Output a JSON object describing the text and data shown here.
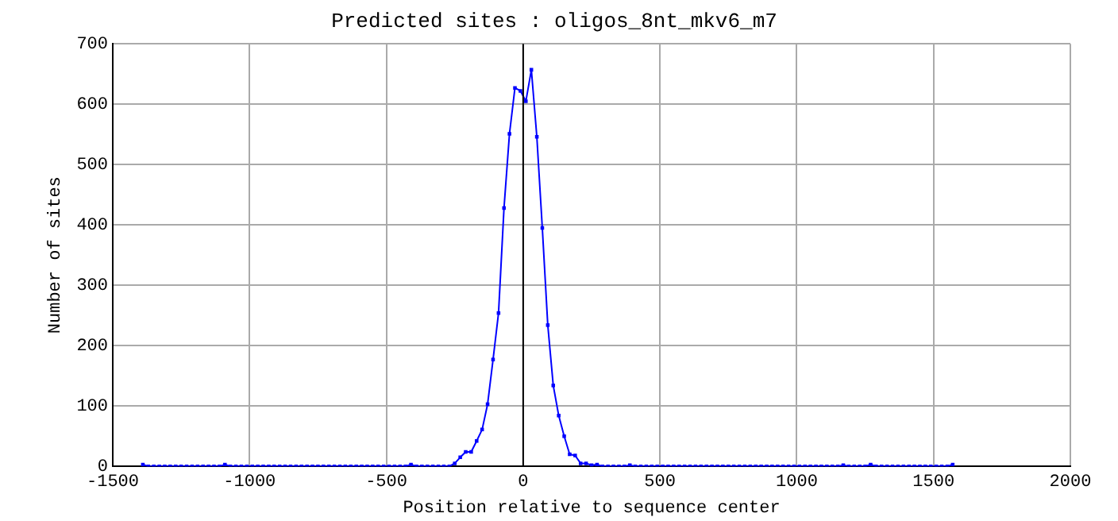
{
  "chart_data": {
    "type": "line",
    "title": "Predicted sites : oligos_8nt_mkv6_m7",
    "xlabel": "Position relative to sequence center",
    "ylabel": "Number of sites",
    "x": [
      -1390,
      -1370,
      -1350,
      -1330,
      -1310,
      -1290,
      -1270,
      -1250,
      -1230,
      -1210,
      -1190,
      -1170,
      -1150,
      -1130,
      -1110,
      -1090,
      -1070,
      -1050,
      -1030,
      -1010,
      -990,
      -970,
      -950,
      -930,
      -910,
      -890,
      -870,
      -850,
      -830,
      -810,
      -790,
      -770,
      -750,
      -730,
      -710,
      -690,
      -670,
      -650,
      -630,
      -610,
      -590,
      -570,
      -550,
      -530,
      -510,
      -490,
      -470,
      -450,
      -430,
      -410,
      -390,
      -370,
      -350,
      -330,
      -310,
      -290,
      -270,
      -250,
      -230,
      -210,
      -190,
      -170,
      -150,
      -130,
      -110,
      -90,
      -70,
      -50,
      -30,
      -10,
      10,
      30,
      50,
      70,
      90,
      110,
      130,
      150,
      170,
      190,
      210,
      230,
      250,
      270,
      290,
      310,
      330,
      350,
      370,
      390,
      410,
      430,
      450,
      470,
      490,
      510,
      530,
      550,
      570,
      590,
      610,
      630,
      650,
      670,
      690,
      710,
      730,
      750,
      770,
      790,
      810,
      830,
      850,
      870,
      890,
      910,
      930,
      950,
      970,
      990,
      1010,
      1030,
      1050,
      1070,
      1090,
      1110,
      1130,
      1150,
      1170,
      1190,
      1210,
      1230,
      1250,
      1270,
      1290,
      1310,
      1330,
      1350,
      1370,
      1390,
      1410,
      1430,
      1450,
      1470,
      1490,
      1510,
      1530,
      1550,
      1570
    ],
    "series": [
      {
        "color": "#0000ff",
        "values": [
          3,
          0,
          0,
          0,
          0,
          0,
          0,
          0,
          0,
          0,
          0,
          0,
          0,
          0,
          0,
          3,
          0,
          0,
          0,
          0,
          0,
          0,
          0,
          0,
          0,
          0,
          0,
          0,
          0,
          0,
          0,
          0,
          0,
          0,
          0,
          0,
          0,
          0,
          0,
          0,
          0,
          0,
          0,
          0,
          0,
          0,
          0,
          0,
          0,
          3,
          0,
          0,
          0,
          0,
          0,
          0,
          0,
          5,
          15,
          24,
          24,
          42,
          61,
          103,
          177,
          254,
          428,
          551,
          627,
          622,
          605,
          657,
          546,
          395,
          234,
          134,
          84,
          50,
          20,
          18,
          5,
          5,
          2,
          3,
          0,
          0,
          0,
          0,
          0,
          2,
          0,
          0,
          0,
          0,
          0,
          0,
          0,
          0,
          0,
          0,
          0,
          0,
          0,
          0,
          0,
          0,
          0,
          0,
          0,
          0,
          0,
          0,
          0,
          0,
          0,
          0,
          0,
          0,
          0,
          0,
          0,
          0,
          0,
          0,
          0,
          0,
          0,
          0,
          2,
          0,
          0,
          0,
          0,
          3,
          0,
          0,
          0,
          0,
          0,
          0,
          0,
          0,
          0,
          0,
          0,
          0,
          0,
          0,
          3
        ]
      }
    ],
    "xlim": [
      -1500,
      2000
    ],
    "xticks": [
      -1500,
      -1000,
      -500,
      0,
      500,
      1000,
      1500,
      2000
    ],
    "ylim": [
      0,
      700
    ],
    "yticks": [
      0,
      100,
      200,
      300,
      400,
      500,
      600,
      700
    ],
    "ref_lines": [
      {
        "axis": "x",
        "value": 0,
        "color": "#000000"
      }
    ],
    "grid": true,
    "legend": false,
    "marker": "square",
    "line_style": "solid"
  }
}
